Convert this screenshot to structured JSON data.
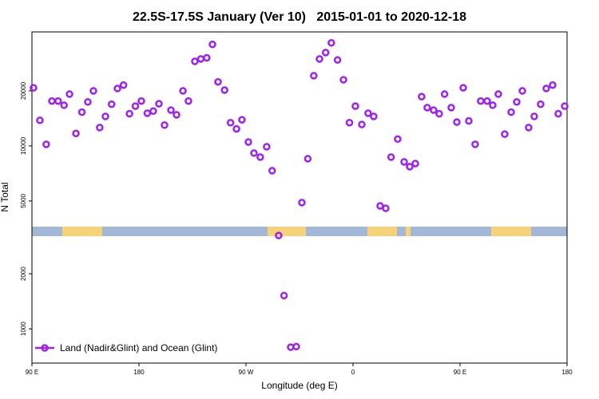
{
  "chart_data": {
    "type": "scatter",
    "title": "22.5S-17.5S January (Ver 10)   2015-01-01 to 2020-12-18",
    "x_label": "Longitude (deg E)",
    "y_label": "N Total",
    "log_y": true,
    "legend": "lower left",
    "xlim": [
      90,
      540
    ],
    "xticks": [
      {
        "value": 90,
        "label": "90 E"
      },
      {
        "value": 180,
        "label": "180"
      },
      {
        "value": 270,
        "label": "90 W"
      },
      {
        "value": 360,
        "label": "0"
      },
      {
        "value": 450,
        "label": "90 E"
      },
      {
        "value": 540,
        "label": "180"
      }
    ],
    "ylim": [
      650,
      42000
    ],
    "yticks": [
      1000,
      2000,
      5000,
      10000,
      20000
    ],
    "series": [
      {
        "name": "Land (Nadir&Glint) and Ocean (Glint)",
        "color": "#a020f0",
        "x": [
          91.3,
          96.7,
          102,
          106.8,
          112,
          117,
          121.6,
          127,
          132,
          137,
          141.7,
          147,
          151.8,
          157,
          161.9,
          167,
          172,
          177,
          182,
          187,
          192,
          196.8,
          201.5,
          206.9,
          211.6,
          217,
          221.6,
          227,
          232,
          237,
          241.8,
          246.5,
          252,
          257,
          262,
          266.6,
          272,
          276.7,
          282,
          287.4,
          292,
          297.5,
          302,
          307.6,
          312.3,
          317,
          322,
          327,
          331.8,
          337,
          341.8,
          347,
          352,
          357,
          362,
          367.4,
          372.7,
          377.4,
          382.8,
          387.5,
          392,
          397.6,
          403,
          407.7,
          412.4,
          417.7,
          422.4,
          427.8,
          432.5,
          437,
          442.6,
          447.3,
          452.7,
          457.4,
          462.7,
          467.4,
          472.8,
          477.5,
          482.2,
          487.6,
          493,
          497.7,
          502.4,
          507.7,
          512.4,
          517.8,
          522.5,
          527.9,
          532.6,
          538
        ],
        "values": [
          20800,
          13800,
          10200,
          17600,
          17600,
          16700,
          19200,
          11700,
          15300,
          17400,
          20000,
          12600,
          14500,
          16900,
          20600,
          21500,
          15000,
          16500,
          17600,
          15100,
          15500,
          17000,
          13000,
          15700,
          14800,
          20000,
          17600,
          29000,
          29900,
          30300,
          35900,
          22400,
          20200,
          13400,
          12400,
          13900,
          10500,
          9140,
          8690,
          9900,
          7320,
          3240,
          1520,
          794,
          800,
          4900,
          8510,
          24200,
          29900,
          32400,
          36600,
          29500,
          23000,
          13400,
          16500,
          13100,
          15100,
          14500,
          4700,
          4560,
          8690,
          10900,
          8180,
          7700,
          8010,
          18600,
          16200,
          15700,
          15000,
          19200,
          16200,
          13500,
          20800,
          13700,
          10200,
          17600,
          17600,
          16700,
          19200,
          11600,
          15300,
          17400,
          20000,
          12600,
          14500,
          16900,
          20600,
          21500,
          15000,
          16500
        ]
      }
    ]
  }
}
